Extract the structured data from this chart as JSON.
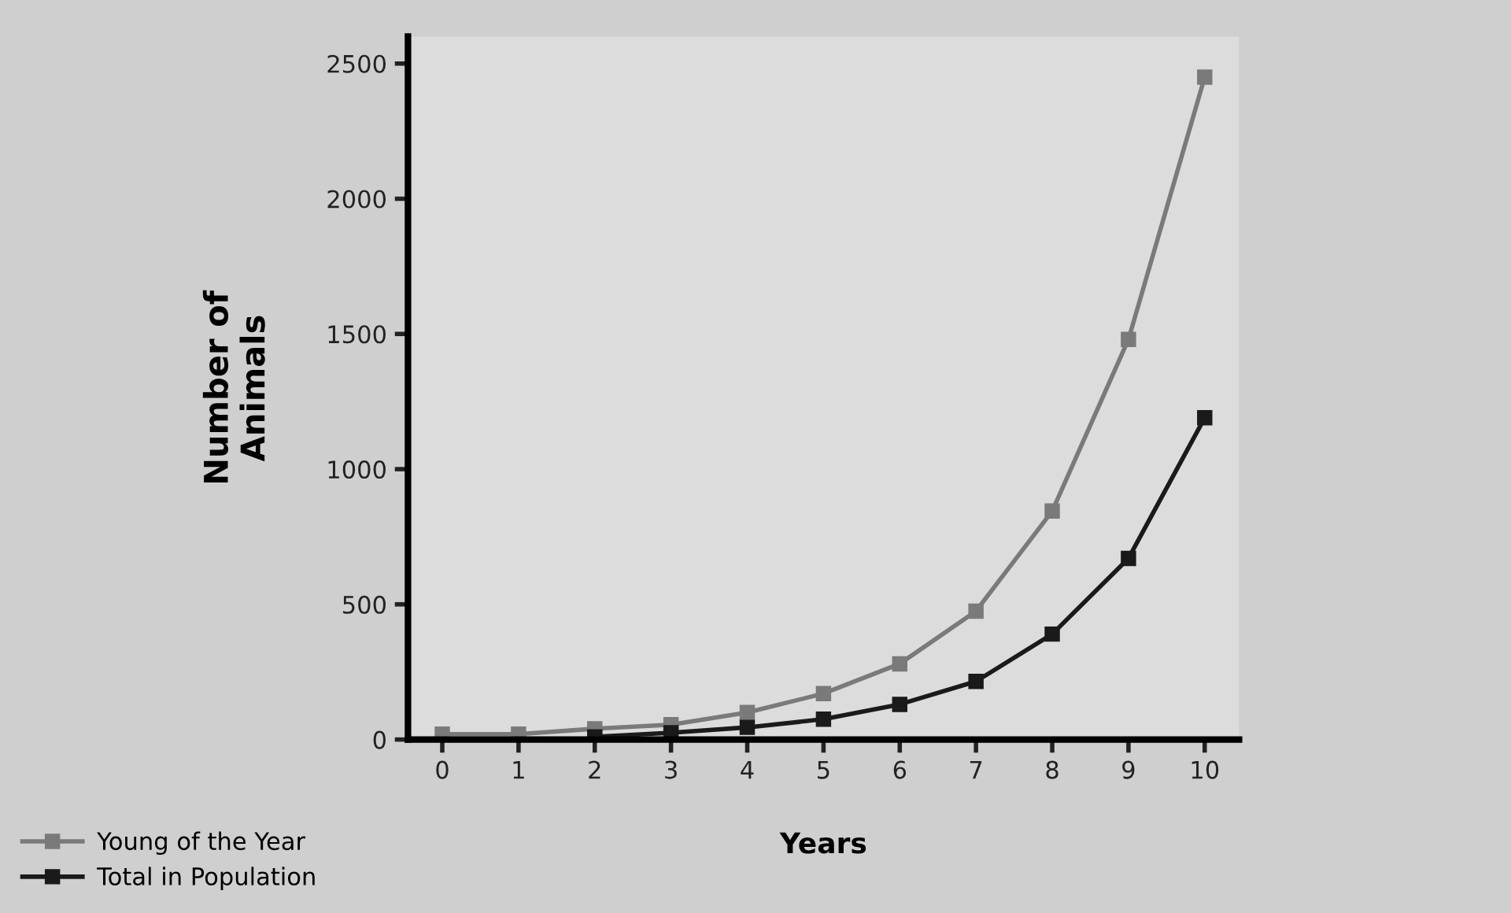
{
  "chart_data": {
    "type": "line",
    "xlabel": "Years",
    "ylabel": "Number of\nAnimals",
    "x": [
      0,
      1,
      2,
      3,
      4,
      5,
      6,
      7,
      8,
      9,
      10
    ],
    "series": [
      {
        "name": "Young of the Year",
        "color": "#7a7a7a",
        "values": [
          20,
          20,
          40,
          55,
          100,
          170,
          280,
          475,
          845,
          1480,
          2450
        ]
      },
      {
        "name": "Total in Population",
        "color": "#1a1a1a",
        "values": [
          null,
          null,
          10,
          25,
          45,
          75,
          130,
          215,
          390,
          670,
          1190
        ]
      }
    ],
    "xlim": [
      -0.45,
      10.45
    ],
    "xticks": [
      0,
      1,
      2,
      3,
      4,
      5,
      6,
      7,
      8,
      9,
      10
    ],
    "ylim": [
      0,
      2600
    ],
    "yticks": [
      0,
      500,
      1000,
      1500,
      2000,
      2500
    ],
    "marker": "square",
    "grid": false,
    "legend": "bottom left"
  }
}
